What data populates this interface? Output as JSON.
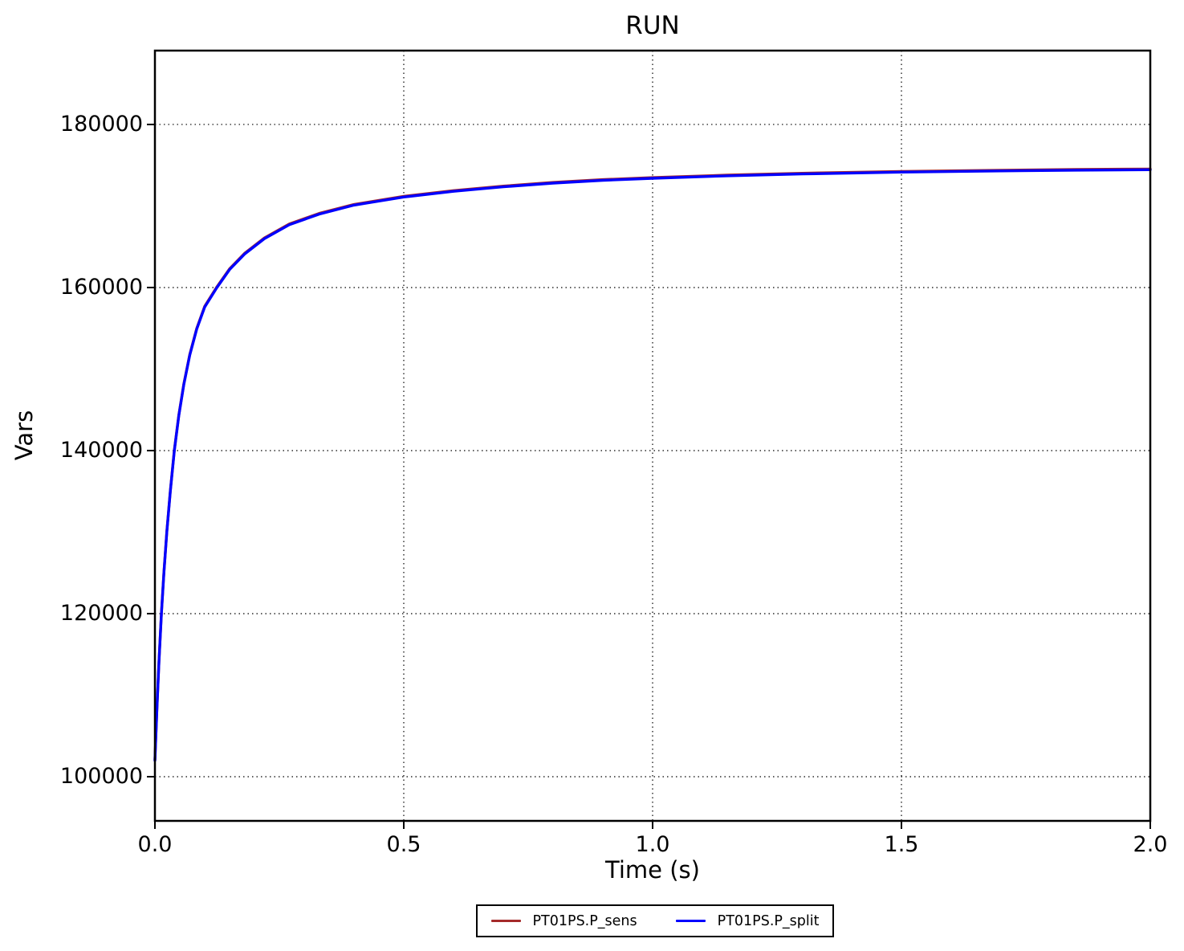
{
  "figure": {
    "title": "RUN"
  },
  "chart_data": {
    "type": "line",
    "title": "RUN",
    "xlabel": "Time (s)",
    "ylabel": "Vars",
    "xlim": [
      0.0,
      2.0
    ],
    "ylim": [
      94580,
      189060
    ],
    "xticks": [
      0.0,
      0.5,
      1.0,
      1.5,
      2.0
    ],
    "xtick_labels": [
      "0.0",
      "0.5",
      "1.0",
      "1.5",
      "2.0"
    ],
    "yticks": [
      100000,
      120000,
      140000,
      160000,
      180000
    ],
    "ytick_labels": [
      "100000",
      "120000",
      "140000",
      "160000",
      "180000"
    ],
    "grid": true,
    "grid_style": "dotted",
    "legend_position": "lower center, outside below axes",
    "x": [
      0.0,
      0.004,
      0.008,
      0.013,
      0.018,
      0.024,
      0.031,
      0.039,
      0.048,
      0.058,
      0.07,
      0.084,
      0.1,
      0.124,
      0.15,
      0.18,
      0.22,
      0.27,
      0.33,
      0.4,
      0.5,
      0.6,
      0.7,
      0.8,
      0.9,
      1.0,
      1.15,
      1.3,
      1.5,
      1.7,
      1.85,
      2.0
    ],
    "series": [
      {
        "name": "PT01PS.P_sens",
        "color": "#a52a2a",
        "values": [
          102000,
          108300,
          114000,
          120000,
          125000,
          130100,
          135000,
          140000,
          144300,
          148100,
          151700,
          154900,
          157600,
          159950,
          162200,
          164100,
          166000,
          167700,
          169000,
          170100,
          171100,
          171800,
          172350,
          172800,
          173150,
          173400,
          173700,
          173930,
          174150,
          174300,
          174390,
          174450
        ]
      },
      {
        "name": "PT01PS.P_split",
        "color": "#0000ff",
        "values": [
          102000,
          108300,
          114000,
          120000,
          125000,
          130100,
          135000,
          140000,
          144300,
          148100,
          151700,
          154900,
          157600,
          159950,
          162200,
          164100,
          166000,
          167700,
          169000,
          170100,
          171100,
          171800,
          172350,
          172800,
          173150,
          173400,
          173700,
          173930,
          174150,
          174300,
          174390,
          174450
        ]
      }
    ]
  },
  "legend": {
    "items": [
      {
        "label": "PT01PS.P_sens",
        "color": "#a52a2a"
      },
      {
        "label": "PT01PS.P_split",
        "color": "#0000ff"
      }
    ]
  }
}
